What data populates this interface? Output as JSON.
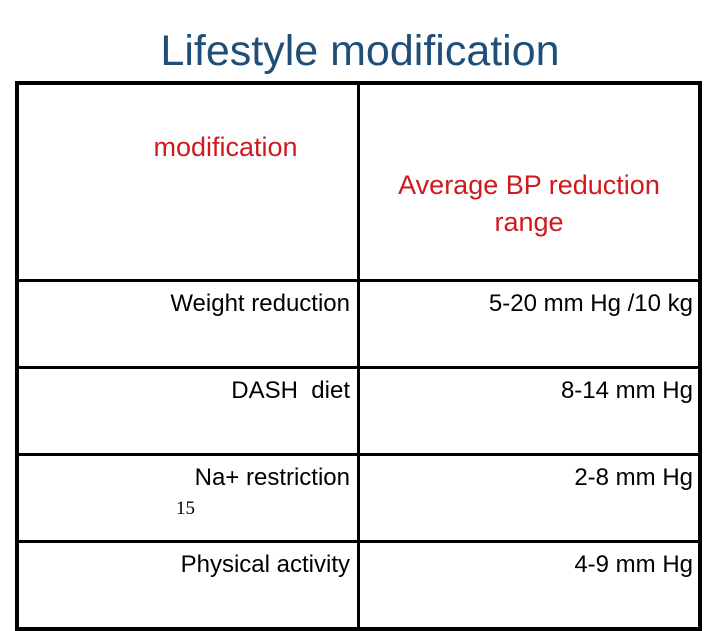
{
  "slide": {
    "title": "Lifestyle modification",
    "page_number": "15",
    "colors": {
      "background": "#FFFFFF",
      "title_text": "#1F4E79",
      "table_header_text": "#CE1A1E",
      "table_body_text": "#000000",
      "table_border": "#000000"
    }
  },
  "table": {
    "header": {
      "col1": "modification",
      "col2": "Average BP reduction range"
    },
    "rows": [
      {
        "modification": "Weight reduction",
        "reduction": "5-20 mm Hg /10 kg"
      },
      {
        "modification": "DASH  diet",
        "reduction": "8-14 mm Hg"
      },
      {
        "modification": "Na+ restriction",
        "reduction": "2-8 mm Hg"
      },
      {
        "modification": "Physical activity",
        "reduction": "4-9 mm Hg"
      }
    ]
  },
  "chart_data": {
    "type": "table",
    "title": "Lifestyle modification",
    "columns": [
      "modification",
      "Average BP reduction range"
    ],
    "rows": [
      [
        "Weight reduction",
        "5-20 mm Hg /10 kg"
      ],
      [
        "DASH  diet",
        "8-14 mm Hg"
      ],
      [
        "Na+ restriction",
        "2-8 mm Hg"
      ],
      [
        "Physical activity",
        "4-9 mm Hg"
      ]
    ]
  }
}
